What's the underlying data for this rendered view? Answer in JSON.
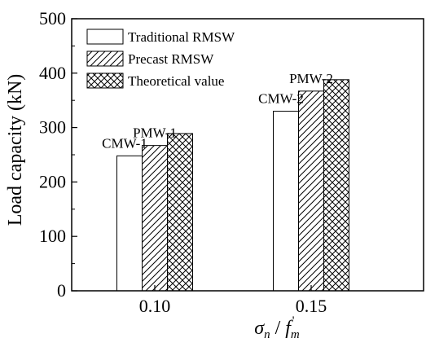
{
  "chart_data": {
    "type": "bar",
    "title": "",
    "xlabel": {
      "base": "σ",
      "sub1": "n",
      "sep": " / ",
      "base2": "f",
      "sub2": "m",
      "sup2": "'"
    },
    "ylabel": "Load capacity (kN)",
    "ylim": [
      0,
      500
    ],
    "yticks": [
      "0",
      "100",
      "200",
      "300",
      "400",
      "500"
    ],
    "categories": [
      "0.10",
      "0.15"
    ],
    "series": [
      {
        "name": "Traditional RMSW",
        "pattern": "empty",
        "values": [
          248,
          330
        ]
      },
      {
        "name": "Precast RMSW",
        "pattern": "hatch",
        "values": [
          267,
          367
        ]
      },
      {
        "name": "Theoretical  value",
        "pattern": "crosshatch",
        "values": [
          289,
          388
        ]
      }
    ],
    "annotations": [
      {
        "text": "CMW-1",
        "category": 0,
        "series": 0
      },
      {
        "text": "PMW-1",
        "category": 0,
        "series": 1
      },
      {
        "text": "CMW-2",
        "category": 1,
        "series": 0
      },
      {
        "text": "PMW-2",
        "category": 1,
        "series": 1
      }
    ],
    "legend_position": "top-left",
    "grid": false,
    "colors": {
      "bar_fill": "#ffffff",
      "stroke": "#000000"
    }
  }
}
